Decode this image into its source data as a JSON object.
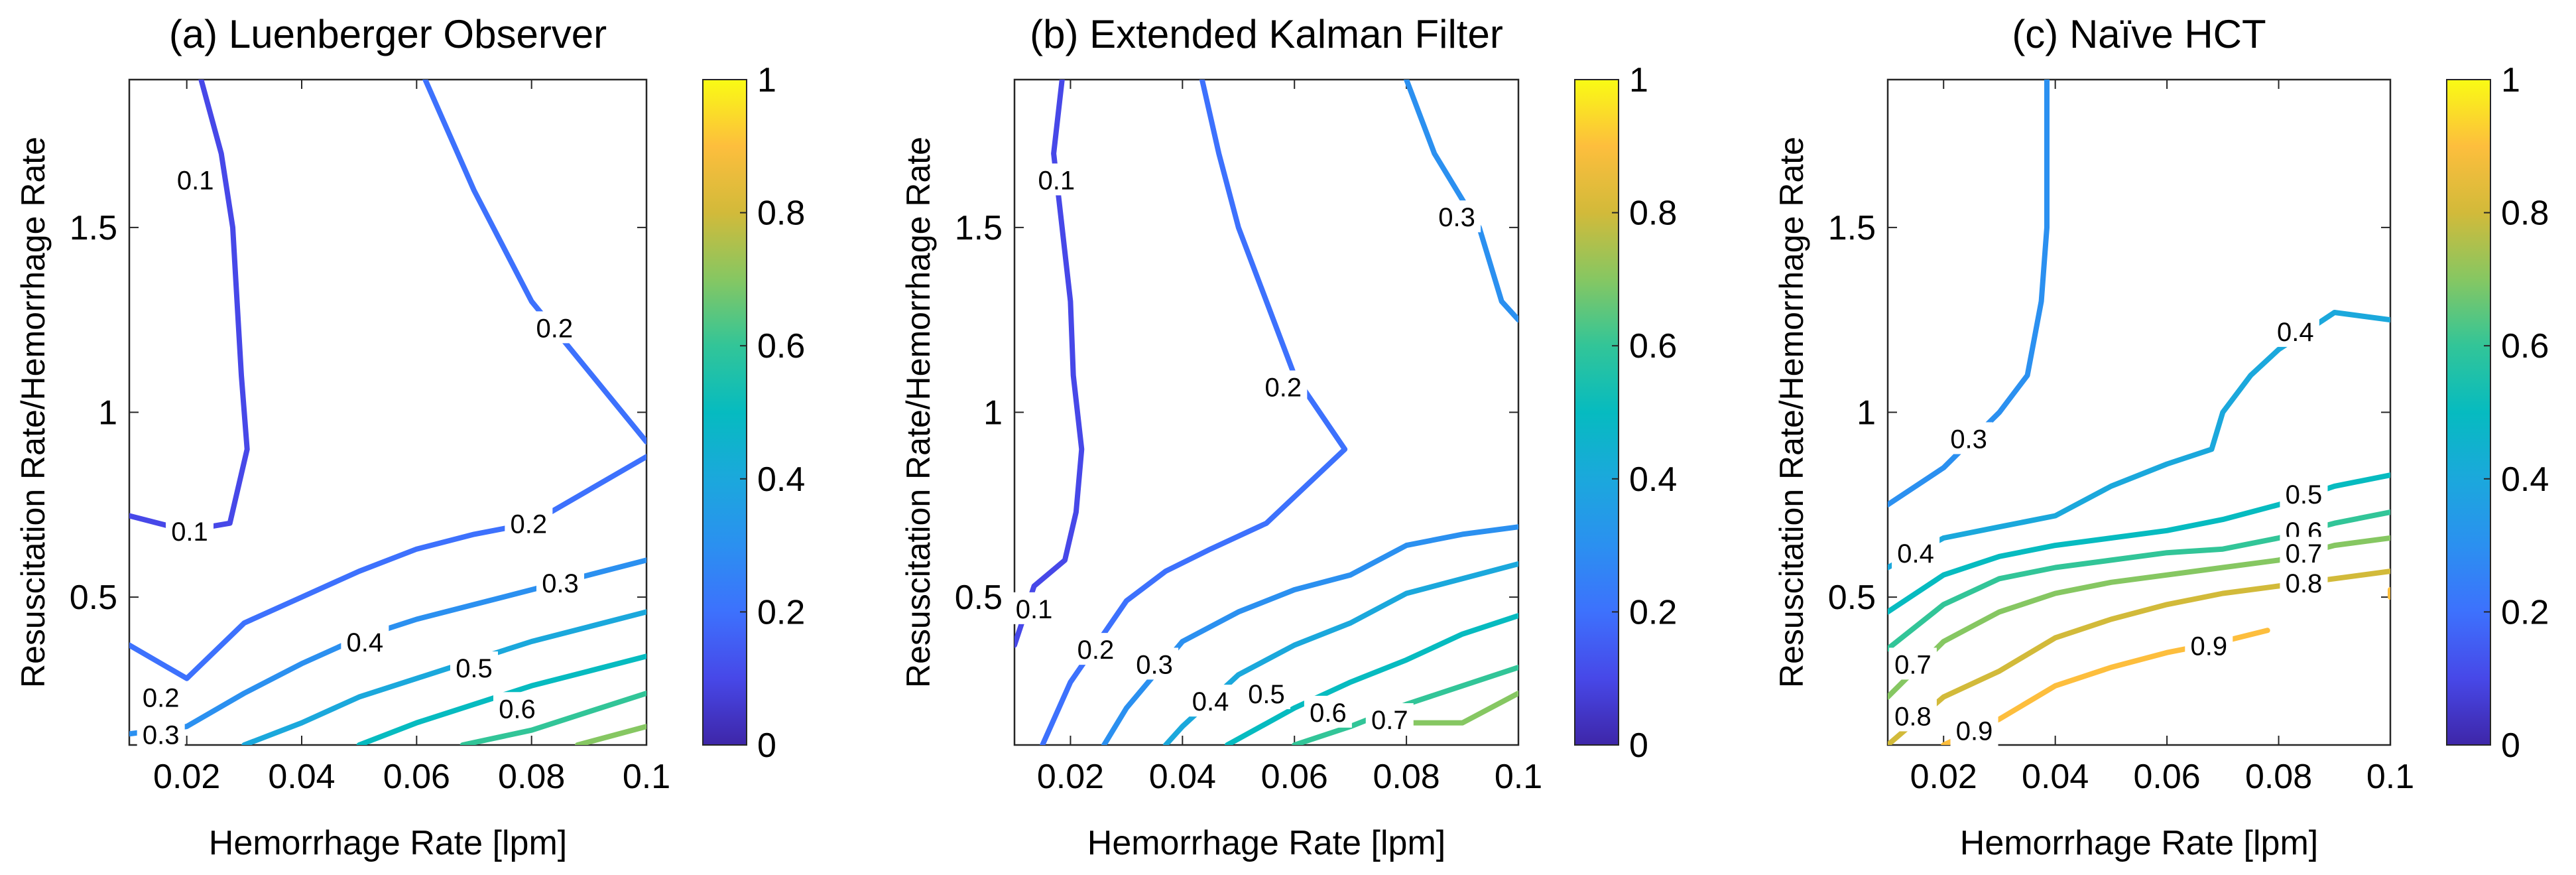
{
  "chart_data": [
    {
      "type": "contour",
      "title": "(a) Luenberger Observer",
      "xlabel": "Hemorrhage Rate [lpm]",
      "ylabel": "Resuscitation Rate/Hemorrhage Rate",
      "xlim": [
        0.01,
        0.1
      ],
      "ylim": [
        0.1,
        1.9
      ],
      "xticks": [
        0.02,
        0.04,
        0.06,
        0.08,
        0.1
      ],
      "xtick_labels": [
        "0.02",
        "0.04",
        "0.06",
        "0.08",
        "0.1"
      ],
      "yticks": [
        0.5,
        1,
        1.5
      ],
      "ytick_labels": [
        "0.5",
        "1",
        "1.5"
      ],
      "colorbar": {
        "range": [
          0,
          1
        ],
        "ticks": [
          0,
          0.2,
          0.4,
          0.6,
          0.8,
          1
        ],
        "tick_labels": [
          "0",
          "0.2",
          "0.4",
          "0.6",
          "0.8",
          "1"
        ]
      },
      "contours": [
        {
          "level": 0.1,
          "points": [
            [
              0.0225,
              1.9
            ],
            [
              0.026,
              1.7
            ],
            [
              0.028,
              1.5
            ],
            [
              0.0295,
              1.1
            ],
            [
              0.0305,
              0.9
            ],
            [
              0.0275,
              0.7
            ],
            [
              0.02,
              0.68
            ],
            [
              0.01,
              0.72
            ]
          ]
        },
        {
          "level": 0.2,
          "points": [
            [
              0.0615,
              1.9
            ],
            [
              0.07,
              1.6
            ],
            [
              0.08,
              1.3
            ],
            [
              0.1,
              0.92
            ]
          ]
        },
        {
          "level": 0.2,
          "points": [
            [
              0.01,
              0.37
            ],
            [
              0.02,
              0.28
            ],
            [
              0.03,
              0.43
            ],
            [
              0.04,
              0.5
            ],
            [
              0.05,
              0.57
            ],
            [
              0.06,
              0.63
            ],
            [
              0.07,
              0.67
            ],
            [
              0.08,
              0.7
            ],
            [
              0.1,
              0.88
            ]
          ]
        },
        {
          "level": 0.3,
          "points": [
            [
              0.01,
              0.13
            ],
            [
              0.02,
              0.15
            ],
            [
              0.03,
              0.24
            ],
            [
              0.04,
              0.32
            ],
            [
              0.05,
              0.39
            ],
            [
              0.06,
              0.44
            ],
            [
              0.07,
              0.48
            ],
            [
              0.08,
              0.52
            ],
            [
              0.09,
              0.56
            ],
            [
              0.1,
              0.6
            ]
          ]
        },
        {
          "level": 0.4,
          "points": [
            [
              0.03,
              0.1
            ],
            [
              0.04,
              0.16
            ],
            [
              0.05,
              0.23
            ],
            [
              0.06,
              0.28
            ],
            [
              0.07,
              0.33
            ],
            [
              0.08,
              0.38
            ],
            [
              0.09,
              0.42
            ],
            [
              0.1,
              0.46
            ]
          ]
        },
        {
          "level": 0.5,
          "points": [
            [
              0.05,
              0.1
            ],
            [
              0.06,
              0.16
            ],
            [
              0.07,
              0.21
            ],
            [
              0.08,
              0.26
            ],
            [
              0.09,
              0.3
            ],
            [
              0.1,
              0.34
            ]
          ]
        },
        {
          "level": 0.6,
          "points": [
            [
              0.068,
              0.1
            ],
            [
              0.08,
              0.14
            ],
            [
              0.09,
              0.19
            ],
            [
              0.1,
              0.24
            ]
          ]
        },
        {
          "level": 0.7,
          "points": [
            [
              0.088,
              0.1
            ],
            [
              0.1,
              0.15
            ]
          ]
        }
      ],
      "contour_labels": [
        {
          "text": "0.1",
          "x": 0.0215,
          "y": 1.63
        },
        {
          "text": "0.1",
          "x": 0.0205,
          "y": 0.68
        },
        {
          "text": "0.2",
          "x": 0.084,
          "y": 1.23
        },
        {
          "text": "0.2",
          "x": 0.0795,
          "y": 0.7
        },
        {
          "text": "0.2",
          "x": 0.0155,
          "y": 0.23
        },
        {
          "text": "0.3",
          "x": 0.085,
          "y": 0.54
        },
        {
          "text": "0.3",
          "x": 0.0155,
          "y": 0.13
        },
        {
          "text": "0.4",
          "x": 0.051,
          "y": 0.38
        },
        {
          "text": "0.5",
          "x": 0.07,
          "y": 0.31
        },
        {
          "text": "0.6",
          "x": 0.0775,
          "y": 0.2
        }
      ]
    },
    {
      "type": "contour",
      "title": "(b) Extended Kalman Filter",
      "xlabel": "Hemorrhage Rate [lpm]",
      "ylabel": "Resuscitation Rate/Hemorrhage Rate",
      "xlim": [
        0.01,
        0.1
      ],
      "ylim": [
        0.1,
        1.9
      ],
      "xticks": [
        0.02,
        0.04,
        0.06,
        0.08,
        0.1
      ],
      "xtick_labels": [
        "0.02",
        "0.04",
        "0.06",
        "0.08",
        "0.1"
      ],
      "yticks": [
        0.5,
        1,
        1.5
      ],
      "ytick_labels": [
        "0.5",
        "1",
        "1.5"
      ],
      "colorbar": {
        "range": [
          0,
          1
        ],
        "ticks": [
          0,
          0.2,
          0.4,
          0.6,
          0.8,
          1
        ],
        "tick_labels": [
          "0",
          "0.2",
          "0.4",
          "0.6",
          "0.8",
          "1"
        ]
      },
      "contours": [
        {
          "level": 0.1,
          "points": [
            [
              0.0185,
              1.9
            ],
            [
              0.017,
              1.7
            ],
            [
              0.0185,
              1.5
            ],
            [
              0.02,
              1.3
            ],
            [
              0.0205,
              1.1
            ],
            [
              0.022,
              0.9
            ],
            [
              0.021,
              0.73
            ],
            [
              0.019,
              0.6
            ],
            [
              0.0135,
              0.53
            ],
            [
              0.01,
              0.37
            ]
          ]
        },
        {
          "level": 0.2,
          "points": [
            [
              0.0435,
              1.9
            ],
            [
              0.0465,
              1.7
            ],
            [
              0.05,
              1.5
            ],
            [
              0.055,
              1.3
            ],
            [
              0.06,
              1.1
            ],
            [
              0.069,
              0.9
            ],
            [
              0.055,
              0.7
            ],
            [
              0.045,
              0.63
            ],
            [
              0.037,
              0.57
            ],
            [
              0.03,
              0.49
            ],
            [
              0.02,
              0.27
            ],
            [
              0.015,
              0.1
            ]
          ]
        },
        {
          "level": 0.3,
          "points": [
            [
              0.08,
              1.9
            ],
            [
              0.085,
              1.7
            ],
            [
              0.093,
              1.5
            ],
            [
              0.097,
              1.3
            ],
            [
              0.1,
              1.25
            ]
          ]
        },
        {
          "level": 0.3,
          "points": [
            [
              0.026,
              0.1
            ],
            [
              0.03,
              0.2
            ],
            [
              0.04,
              0.38
            ],
            [
              0.05,
              0.46
            ],
            [
              0.06,
              0.52
            ],
            [
              0.07,
              0.56
            ],
            [
              0.08,
              0.64
            ],
            [
              0.09,
              0.67
            ],
            [
              0.1,
              0.69
            ]
          ]
        },
        {
          "level": 0.4,
          "points": [
            [
              0.037,
              0.1
            ],
            [
              0.04,
              0.15
            ],
            [
              0.05,
              0.29
            ],
            [
              0.06,
              0.37
            ],
            [
              0.07,
              0.43
            ],
            [
              0.08,
              0.51
            ],
            [
              0.09,
              0.55
            ],
            [
              0.1,
              0.59
            ]
          ]
        },
        {
          "level": 0.5,
          "points": [
            [
              0.048,
              0.1
            ],
            [
              0.06,
              0.2
            ],
            [
              0.07,
              0.27
            ],
            [
              0.08,
              0.33
            ],
            [
              0.09,
              0.4
            ],
            [
              0.1,
              0.45
            ]
          ]
        },
        {
          "level": 0.6,
          "points": [
            [
              0.06,
              0.1
            ],
            [
              0.07,
              0.15
            ],
            [
              0.08,
              0.21
            ],
            [
              0.09,
              0.26
            ],
            [
              0.1,
              0.31
            ]
          ]
        },
        {
          "level": 0.7,
          "points": [
            [
              0.08,
              0.16
            ],
            [
              0.09,
              0.16
            ],
            [
              0.1,
              0.24
            ]
          ]
        }
      ],
      "contour_labels": [
        {
          "text": "0.1",
          "x": 0.0175,
          "y": 1.63
        },
        {
          "text": "0.1",
          "x": 0.0135,
          "y": 0.47
        },
        {
          "text": "0.2",
          "x": 0.058,
          "y": 1.07
        },
        {
          "text": "0.2",
          "x": 0.0245,
          "y": 0.36
        },
        {
          "text": "0.3",
          "x": 0.089,
          "y": 1.53
        },
        {
          "text": "0.3",
          "x": 0.035,
          "y": 0.32
        },
        {
          "text": "0.4",
          "x": 0.045,
          "y": 0.22
        },
        {
          "text": "0.5",
          "x": 0.055,
          "y": 0.24
        },
        {
          "text": "0.6",
          "x": 0.066,
          "y": 0.19
        },
        {
          "text": "0.7",
          "x": 0.077,
          "y": 0.17
        }
      ]
    },
    {
      "type": "contour",
      "title": "(c) Naïve HCT",
      "xlabel": "Hemorrhage Rate [lpm]",
      "ylabel": "Resuscitation Rate/Hemorrhage Rate",
      "xlim": [
        0.01,
        0.1
      ],
      "ylim": [
        0.1,
        1.9
      ],
      "xticks": [
        0.02,
        0.04,
        0.06,
        0.08,
        0.1
      ],
      "xtick_labels": [
        "0.02",
        "0.04",
        "0.06",
        "0.08",
        "0.1"
      ],
      "yticks": [
        0.5,
        1,
        1.5
      ],
      "ytick_labels": [
        "0.5",
        "1",
        "1.5"
      ],
      "colorbar": {
        "range": [
          0,
          1
        ],
        "ticks": [
          0,
          0.2,
          0.4,
          0.6,
          0.8,
          1
        ],
        "tick_labels": [
          "0",
          "0.2",
          "0.4",
          "0.6",
          "0.8",
          "1"
        ]
      },
      "contours": [
        {
          "level": 0.3,
          "points": [
            [
              0.0385,
              1.9
            ],
            [
              0.0385,
              1.7
            ],
            [
              0.0385,
              1.5
            ],
            [
              0.0375,
              1.3
            ],
            [
              0.035,
              1.1
            ],
            [
              0.03,
              1.0
            ],
            [
              0.02,
              0.85
            ],
            [
              0.01,
              0.75
            ]
          ]
        },
        {
          "level": 0.4,
          "points": [
            [
              0.01,
              0.58
            ],
            [
              0.02,
              0.66
            ],
            [
              0.03,
              0.69
            ],
            [
              0.04,
              0.72
            ],
            [
              0.05,
              0.8
            ],
            [
              0.06,
              0.86
            ],
            [
              0.068,
              0.9
            ],
            [
              0.07,
              1.0
            ],
            [
              0.075,
              1.1
            ],
            [
              0.08,
              1.17
            ],
            [
              0.09,
              1.27
            ],
            [
              0.1,
              1.25
            ]
          ]
        },
        {
          "level": 0.5,
          "points": [
            [
              0.01,
              0.46
            ],
            [
              0.02,
              0.56
            ],
            [
              0.03,
              0.61
            ],
            [
              0.04,
              0.64
            ],
            [
              0.05,
              0.66
            ],
            [
              0.06,
              0.68
            ],
            [
              0.07,
              0.71
            ],
            [
              0.08,
              0.75
            ],
            [
              0.09,
              0.8
            ],
            [
              0.1,
              0.83
            ]
          ]
        },
        {
          "level": 0.6,
          "points": [
            [
              0.01,
              0.36
            ],
            [
              0.02,
              0.48
            ],
            [
              0.03,
              0.55
            ],
            [
              0.04,
              0.58
            ],
            [
              0.05,
              0.6
            ],
            [
              0.06,
              0.62
            ],
            [
              0.07,
              0.63
            ],
            [
              0.08,
              0.66
            ],
            [
              0.09,
              0.7
            ],
            [
              0.1,
              0.73
            ]
          ]
        },
        {
          "level": 0.7,
          "points": [
            [
              0.01,
              0.23
            ],
            [
              0.02,
              0.38
            ],
            [
              0.03,
              0.46
            ],
            [
              0.04,
              0.51
            ],
            [
              0.05,
              0.54
            ],
            [
              0.06,
              0.56
            ],
            [
              0.07,
              0.58
            ],
            [
              0.08,
              0.6
            ],
            [
              0.09,
              0.64
            ],
            [
              0.1,
              0.66
            ]
          ]
        },
        {
          "level": 0.8,
          "points": [
            [
              0.01,
              0.1
            ],
            [
              0.02,
              0.23
            ],
            [
              0.03,
              0.3
            ],
            [
              0.04,
              0.39
            ],
            [
              0.05,
              0.44
            ],
            [
              0.06,
              0.48
            ],
            [
              0.07,
              0.51
            ],
            [
              0.08,
              0.53
            ],
            [
              0.09,
              0.55
            ],
            [
              0.1,
              0.57
            ]
          ]
        },
        {
          "level": 0.9,
          "points": [
            [
              0.02,
              0.1
            ],
            [
              0.03,
              0.17
            ],
            [
              0.04,
              0.26
            ],
            [
              0.05,
              0.31
            ],
            [
              0.06,
              0.35
            ],
            [
              0.07,
              0.38
            ],
            [
              0.078,
              0.41
            ]
          ]
        },
        {
          "level": 0.9,
          "points": [
            [
              0.1,
              0.52
            ],
            [
              0.1,
              0.5
            ]
          ]
        }
      ],
      "contour_labels": [
        {
          "text": "0.3",
          "x": 0.0245,
          "y": 0.93
        },
        {
          "text": "0.4",
          "x": 0.083,
          "y": 1.22
        },
        {
          "text": "0.4",
          "x": 0.015,
          "y": 0.62
        },
        {
          "text": "0.5",
          "x": 0.0845,
          "y": 0.78
        },
        {
          "text": "0.6",
          "x": 0.0845,
          "y": 0.68
        },
        {
          "text": "0.7",
          "x": 0.0845,
          "y": 0.62
        },
        {
          "text": "0.7",
          "x": 0.0145,
          "y": 0.32
        },
        {
          "text": "0.8",
          "x": 0.0845,
          "y": 0.54
        },
        {
          "text": "0.8",
          "x": 0.0145,
          "y": 0.18
        },
        {
          "text": "0.9",
          "x": 0.0675,
          "y": 0.37
        },
        {
          "text": "0.9",
          "x": 0.0255,
          "y": 0.14
        }
      ]
    }
  ]
}
